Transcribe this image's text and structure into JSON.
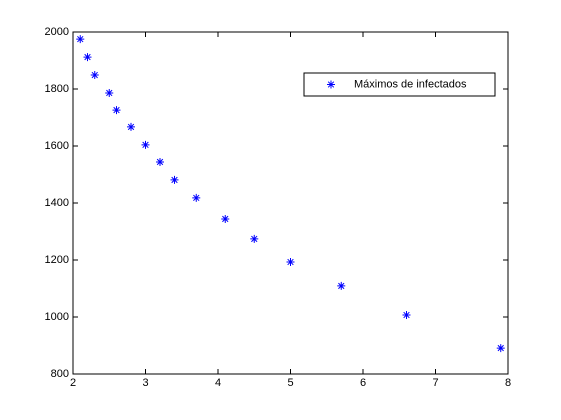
{
  "chart_data": {
    "type": "scatter",
    "x": [
      2.1,
      2.2,
      2.3,
      2.5,
      2.6,
      2.8,
      3.0,
      3.2,
      3.4,
      3.7,
      4.1,
      4.5,
      5.0,
      5.7,
      6.6,
      7.9
    ],
    "series": [
      {
        "name": "Máximos de infectados",
        "color": "#0000ff",
        "values": [
          1975,
          1912,
          1849,
          1786,
          1726,
          1667,
          1604,
          1544,
          1481,
          1418,
          1344,
          1274,
          1193,
          1109,
          1007,
          891
        ]
      }
    ],
    "xlim": [
      2,
      8
    ],
    "xticks": [
      2,
      3,
      4,
      5,
      6,
      7,
      8
    ],
    "ylim": [
      800,
      2000
    ],
    "yticks": [
      800,
      1000,
      1200,
      1400,
      1600,
      1800,
      2000
    ],
    "grid": false,
    "legend": "northeast"
  }
}
